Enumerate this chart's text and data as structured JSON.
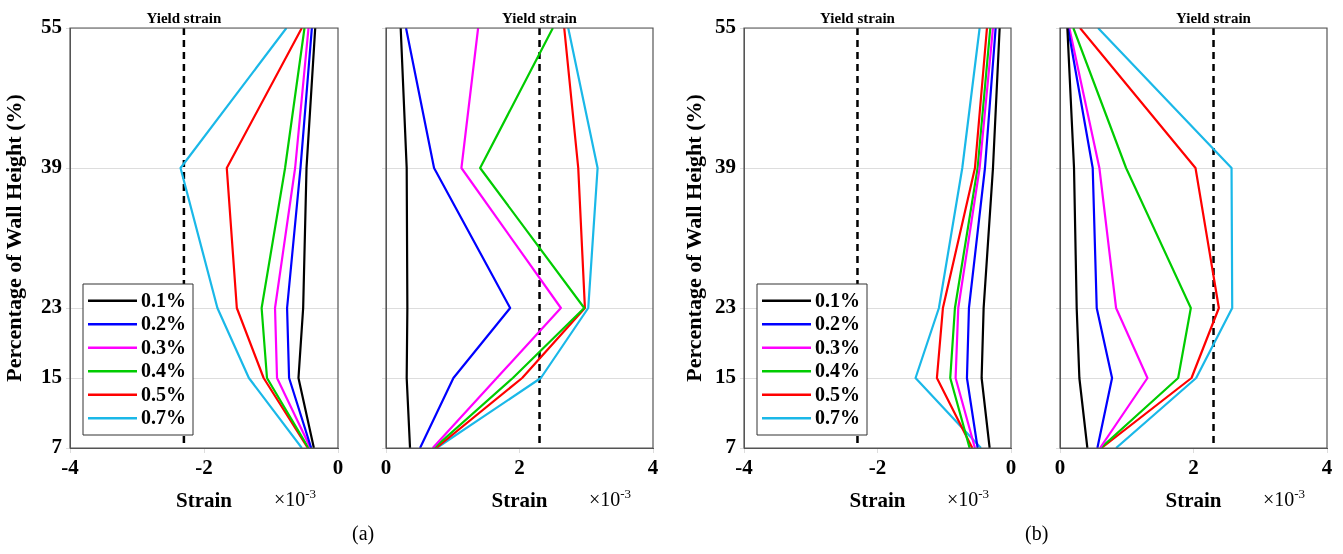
{
  "chart_data": [
    {
      "type": "line",
      "ylabel": "Percentage of Wall Height (%)",
      "xlabel": "Strain",
      "xlim": [
        -4,
        0
      ],
      "xticks": [
        -4,
        -2,
        0
      ],
      "ylim": [
        7,
        55
      ],
      "yticks": [
        7,
        15,
        23,
        39,
        55
      ],
      "grid": "y",
      "legend": "bottom left",
      "annotations": [
        "×10$^{-3}$",
        "(a)"
      ],
      "ref_lines": [
        {
          "axis": "x",
          "value": -2.3,
          "label": "Yield strain",
          "color": "#000000",
          "line_style": "dashed"
        }
      ],
      "series": [
        {
          "name": "0.1%",
          "color": "#000000",
          "x": [
            -0.36,
            -0.59,
            -0.52,
            -0.47,
            -0.34
          ],
          "values": [
            7,
            15,
            23,
            39,
            55
          ]
        },
        {
          "name": "0.2%",
          "color": "#0000ff",
          "x": [
            -0.4,
            -0.73,
            -0.76,
            -0.56,
            -0.39
          ],
          "values": [
            7,
            15,
            23,
            39,
            55
          ]
        },
        {
          "name": "0.3%",
          "color": "#ff00ff",
          "x": [
            -0.41,
            -0.91,
            -0.94,
            -0.64,
            -0.44
          ],
          "values": [
            7,
            15,
            23,
            39,
            55
          ]
        },
        {
          "name": "0.4%",
          "color": "#00cc00",
          "x": [
            -0.44,
            -1.06,
            -1.14,
            -0.79,
            -0.5
          ],
          "values": [
            7,
            15,
            23,
            39,
            55
          ]
        },
        {
          "name": "0.5%",
          "color": "#ff0000",
          "x": [
            -0.45,
            -1.11,
            -1.51,
            -1.66,
            -0.54
          ],
          "values": [
            7,
            15,
            23,
            39,
            55
          ]
        },
        {
          "name": "0.7%",
          "color": "#1ab8e8",
          "x": [
            -0.54,
            -1.33,
            -1.8,
            -2.35,
            -0.77
          ],
          "values": [
            7,
            15,
            23,
            39,
            55
          ]
        }
      ]
    },
    {
      "type": "line",
      "xlabel": "Strain",
      "xlim": [
        0,
        4
      ],
      "xticks": [
        0,
        2,
        4
      ],
      "ylim": [
        7,
        55
      ],
      "yticks": [
        7,
        15,
        23,
        39,
        55
      ],
      "grid": "y",
      "tick_labels": "x",
      "annotations": [
        "×10$^{-3}$"
      ],
      "ref_lines": [
        {
          "axis": "x",
          "value": 2.3,
          "label": "Yield strain",
          "color": "#000000",
          "line_style": "dashed"
        }
      ],
      "series": [
        {
          "color": "#000000",
          "x": [
            0.36,
            0.31,
            0.32,
            0.31,
            0.22
          ],
          "values": [
            7,
            15,
            23,
            39,
            55
          ]
        },
        {
          "color": "#0000ff",
          "x": [
            0.51,
            1.01,
            1.86,
            0.72,
            0.3
          ],
          "values": [
            7,
            15,
            23,
            39,
            55
          ]
        },
        {
          "color": "#ff00ff",
          "x": [
            0.7,
            1.66,
            2.62,
            1.13,
            1.38
          ],
          "values": [
            7,
            15,
            23,
            39,
            55
          ]
        },
        {
          "color": "#00cc00",
          "x": [
            0.72,
            1.9,
            2.97,
            1.41,
            2.5
          ],
          "values": [
            7,
            15,
            23,
            39,
            55
          ]
        },
        {
          "color": "#ff0000",
          "x": [
            0.75,
            2.04,
            2.98,
            2.88,
            2.67
          ],
          "values": [
            7,
            15,
            23,
            39,
            55
          ]
        },
        {
          "color": "#1ab8e8",
          "x": [
            0.76,
            2.32,
            3.03,
            3.17,
            2.73
          ],
          "values": [
            7,
            15,
            23,
            39,
            55
          ]
        }
      ]
    },
    {
      "type": "line",
      "ylabel": "Percentage of Wall Height (%)",
      "xlabel": "Strain",
      "xlim": [
        -4,
        0
      ],
      "xticks": [
        -4,
        -2,
        0
      ],
      "ylim": [
        7,
        55
      ],
      "yticks": [
        7,
        15,
        23,
        39,
        55
      ],
      "grid": "y",
      "legend": "bottom left",
      "annotations": [
        "×10$^{-3}$",
        "(b)"
      ],
      "ref_lines": [
        {
          "axis": "x",
          "value": -2.3,
          "label": "Yield strain",
          "color": "#000000",
          "line_style": "dashed"
        }
      ],
      "series": [
        {
          "name": "0.1%",
          "color": "#000000",
          "x": [
            -0.32,
            -0.44,
            -0.41,
            -0.27,
            -0.17
          ],
          "values": [
            7,
            15,
            23,
            39,
            55
          ]
        },
        {
          "name": "0.2%",
          "color": "#0000ff",
          "x": [
            -0.5,
            -0.66,
            -0.63,
            -0.39,
            -0.23
          ],
          "values": [
            7,
            15,
            23,
            39,
            55
          ]
        },
        {
          "name": "0.3%",
          "color": "#ff00ff",
          "x": [
            -0.54,
            -0.83,
            -0.79,
            -0.47,
            -0.27
          ],
          "values": [
            7,
            15,
            23,
            39,
            55
          ]
        },
        {
          "name": "0.4%",
          "color": "#00cc00",
          "x": [
            -0.62,
            -0.91,
            -0.84,
            -0.5,
            -0.31
          ],
          "values": [
            7,
            15,
            23,
            39,
            55
          ]
        },
        {
          "name": "0.5%",
          "color": "#ff0000",
          "x": [
            -0.58,
            -1.11,
            -1.02,
            -0.54,
            -0.36
          ],
          "values": [
            7,
            15,
            23,
            39,
            55
          ]
        },
        {
          "name": "0.7%",
          "color": "#1ab8e8",
          "x": [
            -0.45,
            -1.43,
            -1.08,
            -0.73,
            -0.47
          ],
          "values": [
            7,
            15,
            23,
            39,
            55
          ]
        }
      ]
    },
    {
      "type": "line",
      "xlabel": "Strain",
      "xlim": [
        0,
        4
      ],
      "xticks": [
        0,
        2,
        4
      ],
      "ylim": [
        7,
        55
      ],
      "yticks": [
        7,
        15,
        23,
        39,
        55
      ],
      "grid": "y",
      "tick_labels": "x",
      "annotations": [
        "×10$^{-3}$"
      ],
      "ref_lines": [
        {
          "axis": "x",
          "value": 2.3,
          "label": "Yield strain",
          "color": "#000000",
          "line_style": "dashed"
        }
      ],
      "series": [
        {
          "color": "#000000",
          "x": [
            0.41,
            0.29,
            0.25,
            0.21,
            0.11
          ],
          "values": [
            7,
            15,
            23,
            39,
            55
          ]
        },
        {
          "color": "#0000ff",
          "x": [
            0.56,
            0.78,
            0.55,
            0.49,
            0.12
          ],
          "values": [
            7,
            15,
            23,
            39,
            55
          ]
        },
        {
          "color": "#ff00ff",
          "x": [
            0.6,
            1.31,
            0.84,
            0.59,
            0.14
          ],
          "values": [
            7,
            15,
            23,
            39,
            55
          ]
        },
        {
          "color": "#00cc00",
          "x": [
            0.61,
            1.77,
            1.96,
            0.99,
            0.2
          ],
          "values": [
            7,
            15,
            23,
            39,
            55
          ]
        },
        {
          "color": "#ff0000",
          "x": [
            0.62,
            1.97,
            2.38,
            2.03,
            0.3
          ],
          "values": [
            7,
            15,
            23,
            39,
            55
          ]
        },
        {
          "color": "#1ab8e8",
          "x": [
            0.84,
            2.04,
            2.58,
            2.57,
            0.57
          ],
          "values": [
            7,
            15,
            23,
            39,
            55
          ]
        }
      ]
    }
  ]
}
